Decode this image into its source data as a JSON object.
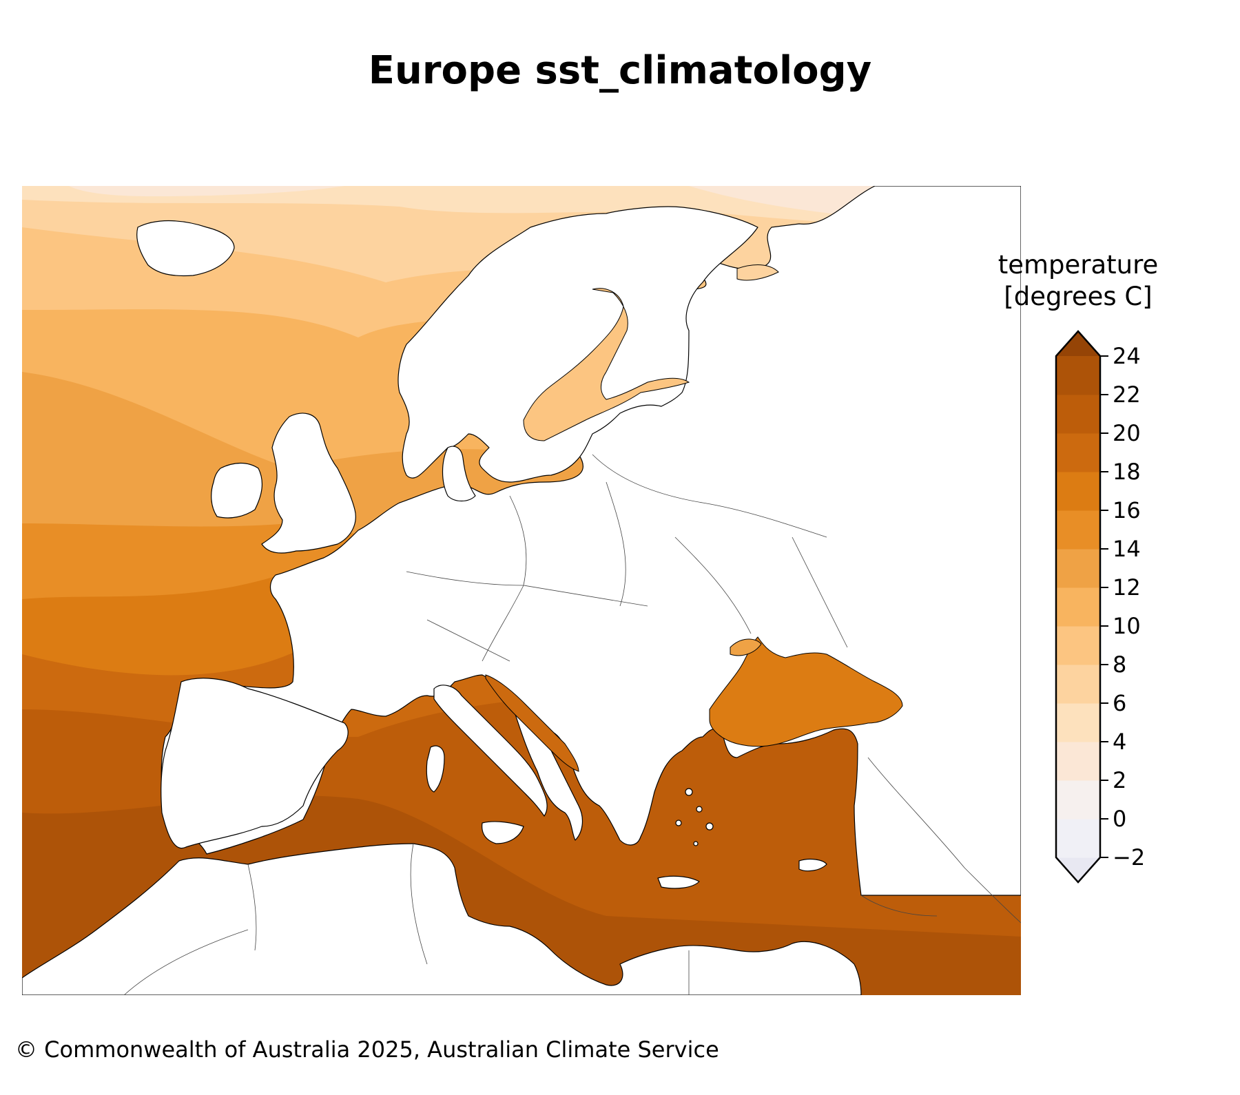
{
  "title": "Europe sst_climatology",
  "colorbar": {
    "title_line1": "temperature",
    "title_line2": "[degrees C]",
    "ticks": [
      "24",
      "22",
      "20",
      "18",
      "16",
      "14",
      "12",
      "10",
      "8",
      "6",
      "4",
      "2",
      "0",
      "−2"
    ],
    "levels": [
      -2,
      0,
      2,
      4,
      6,
      8,
      10,
      12,
      14,
      16,
      18,
      20,
      22,
      24
    ],
    "colors": [
      "#f0f0f6",
      "#f6f0ee",
      "#fbe7d6",
      "#fde1bd",
      "#fdd39f",
      "#fcc581",
      "#f8b45f",
      "#efa245",
      "#e88e26",
      "#dc7c13",
      "#cc6a0f",
      "#bd5d0a",
      "#ad5308"
    ],
    "under_color": "#e8e8f2",
    "over_color": "#954406",
    "extend": "both"
  },
  "copyright": "© Commonwealth of Australia 2025, Australian Climate Service",
  "map": {
    "region": "Europe",
    "variable": "sst_climatology",
    "land_color": "#ffffff",
    "coastline_color": "#000000"
  }
}
